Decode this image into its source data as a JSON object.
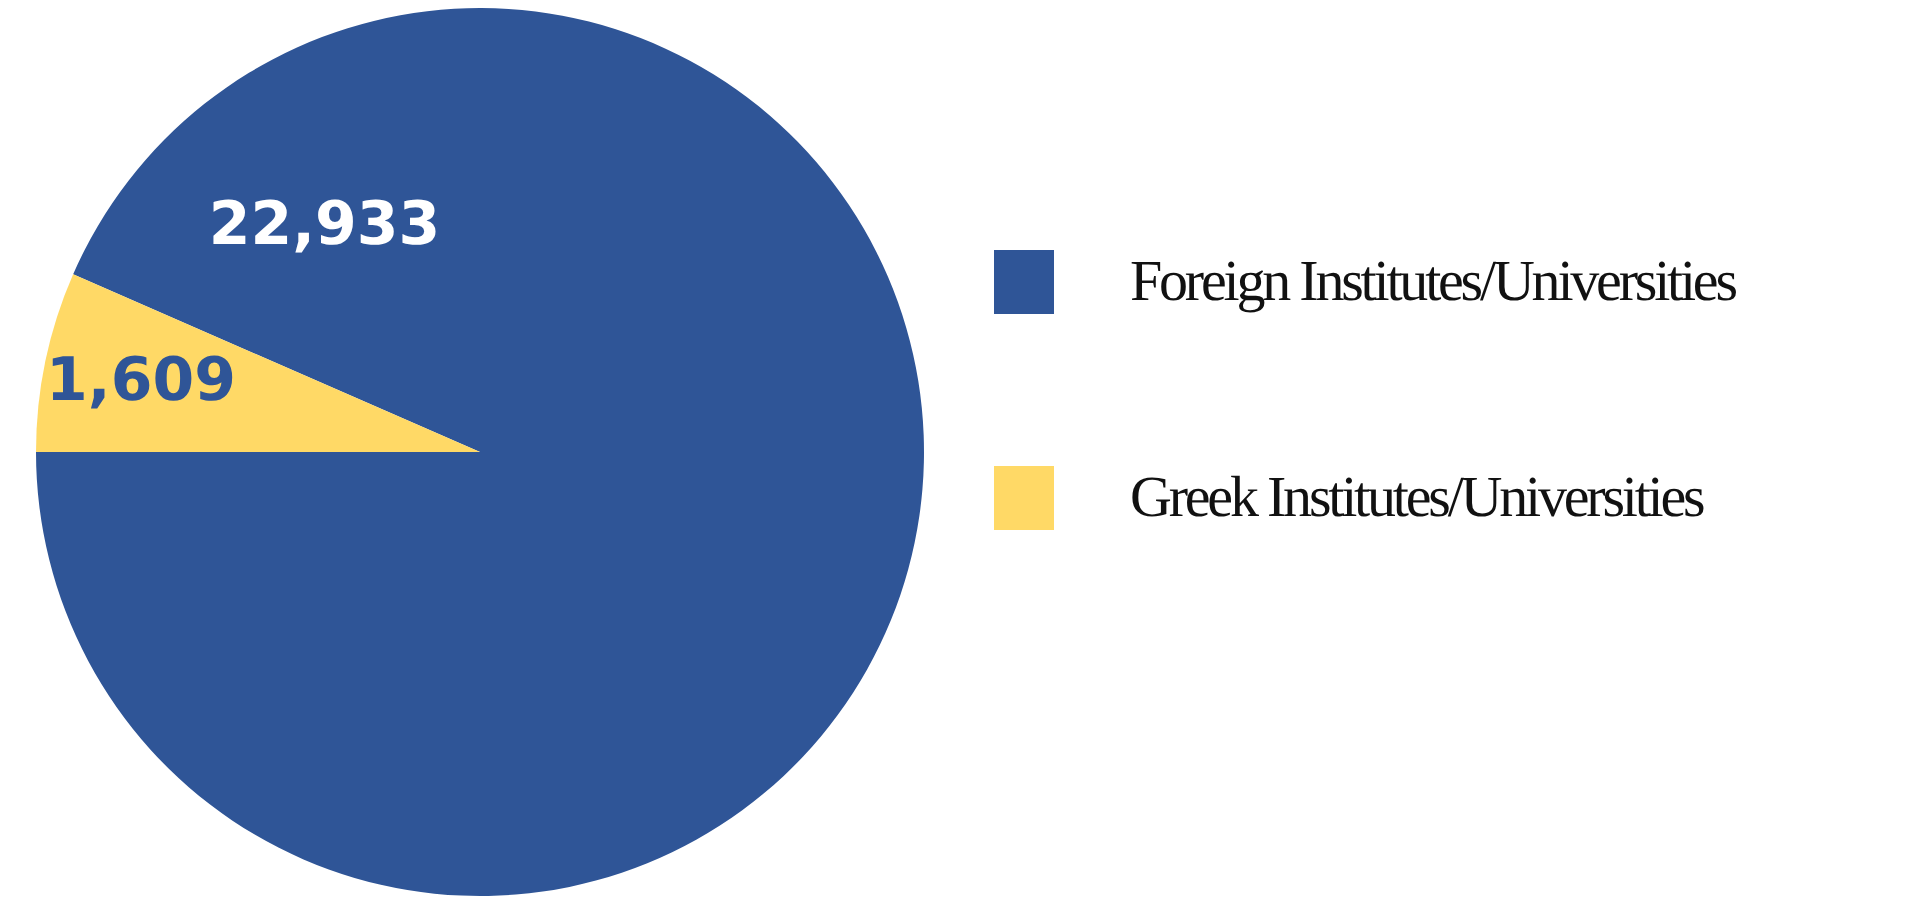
{
  "chart_data": {
    "type": "pie",
    "categories": [
      "Foreign Institutes/Universities",
      "Greek Institutes/Universities"
    ],
    "values": [
      22933,
      1609
    ],
    "colors": [
      "#2f5597",
      "#ffd966"
    ],
    "value_labels": [
      "22,933",
      "1,609"
    ],
    "legend": "right"
  }
}
